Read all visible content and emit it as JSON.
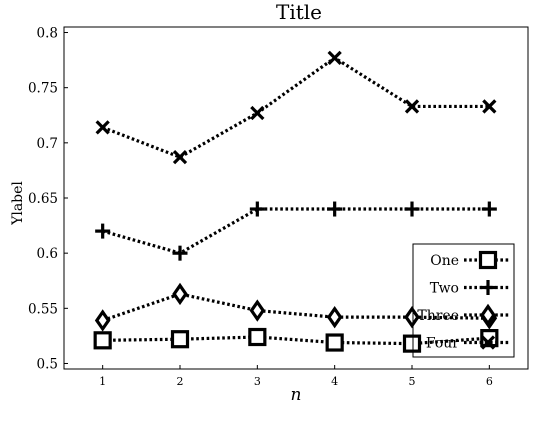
{
  "chart_data": {
    "type": "line",
    "title": "Title",
    "xlabel": "n",
    "ylabel": "Ylabel",
    "x": [
      1,
      2,
      3,
      4,
      5,
      6
    ],
    "xlim": [
      0.5,
      6.5
    ],
    "ylim": [
      0.495,
      0.805
    ],
    "xticks": [
      "1",
      "2",
      "3",
      "4",
      "5",
      "6"
    ],
    "yticks": [
      "0.5",
      "0.55",
      "0.6",
      "0.65",
      "0.7",
      "0.75",
      "0.8"
    ],
    "grid": false,
    "legend_position": "lower-right",
    "line_style": "dotted",
    "color": "#000000",
    "series": [
      {
        "name": "One",
        "marker": "square",
        "values": [
          0.521,
          0.522,
          0.524,
          0.519,
          0.518,
          0.523
        ]
      },
      {
        "name": "Two",
        "marker": "plus",
        "values": [
          0.62,
          0.6,
          0.64,
          0.64,
          0.64,
          0.64
        ]
      },
      {
        "name": "Three",
        "marker": "diamond",
        "values": [
          0.539,
          0.563,
          0.548,
          0.542,
          0.542,
          0.541
        ]
      },
      {
        "name": "Four",
        "marker": "x",
        "values": [
          0.714,
          0.687,
          0.727,
          0.777,
          0.733,
          0.733
        ]
      }
    ]
  }
}
